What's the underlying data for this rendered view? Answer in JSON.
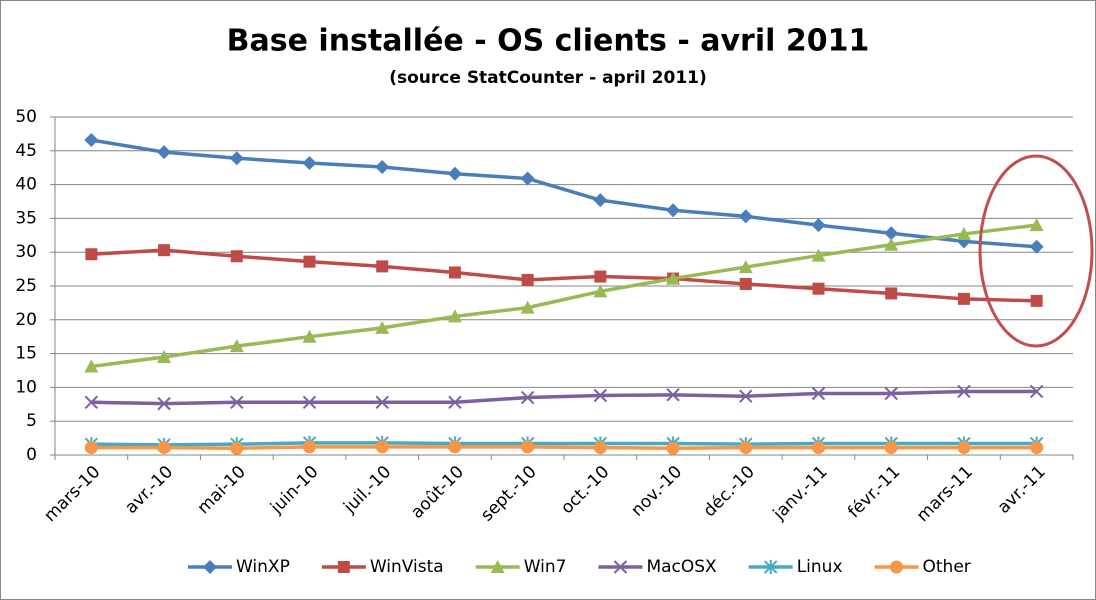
{
  "chart_data": {
    "type": "line",
    "title": "Base installée - OS clients - avril 2011",
    "subtitle": "(source StatCounter - april 2011)",
    "categories": [
      "mars-10",
      "avr.-10",
      "mai-10",
      "juin-10",
      "juil.-10",
      "août-10",
      "sept.-10",
      "oct.-10",
      "nov.-10",
      "déc.-10",
      "janv.-11",
      "févr.-11",
      "mars-11",
      "avr.-11"
    ],
    "series": [
      {
        "name": "WinXP",
        "color": "#4a7ebb",
        "marker": "diamond",
        "values": [
          46.6,
          44.8,
          43.9,
          43.2,
          42.6,
          41.6,
          40.9,
          37.7,
          36.2,
          35.3,
          34.0,
          32.8,
          31.6,
          30.8
        ]
      },
      {
        "name": "WinVista",
        "color": "#be4b48",
        "marker": "square",
        "values": [
          29.7,
          30.3,
          29.4,
          28.6,
          27.9,
          27.0,
          25.9,
          26.4,
          26.1,
          25.3,
          24.6,
          23.9,
          23.1,
          22.8
        ]
      },
      {
        "name": "Win7",
        "color": "#98b954",
        "marker": "triangle",
        "values": [
          13.1,
          14.5,
          16.1,
          17.5,
          18.8,
          20.5,
          21.8,
          24.2,
          26.1,
          27.8,
          29.5,
          31.1,
          32.7,
          34.0
        ]
      },
      {
        "name": "MacOSX",
        "color": "#7d60a0",
        "marker": "x",
        "values": [
          7.8,
          7.6,
          7.8,
          7.8,
          7.8,
          7.8,
          8.5,
          8.8,
          8.9,
          8.7,
          9.1,
          9.1,
          9.4,
          9.4
        ]
      },
      {
        "name": "Linux",
        "color": "#46aac5",
        "marker": "star",
        "values": [
          1.6,
          1.5,
          1.6,
          1.8,
          1.8,
          1.7,
          1.7,
          1.7,
          1.7,
          1.6,
          1.7,
          1.7,
          1.7,
          1.7
        ]
      },
      {
        "name": "Other",
        "color": "#f79646",
        "marker": "circle",
        "values": [
          1.1,
          1.1,
          1.0,
          1.2,
          1.2,
          1.2,
          1.2,
          1.1,
          1.0,
          1.1,
          1.1,
          1.1,
          1.1,
          1.1
        ]
      }
    ],
    "ylim": [
      0,
      50
    ],
    "yticks": [
      0,
      5,
      10,
      15,
      20,
      25,
      30,
      35,
      40,
      45,
      50
    ],
    "grid": true,
    "legend": "bottom"
  }
}
